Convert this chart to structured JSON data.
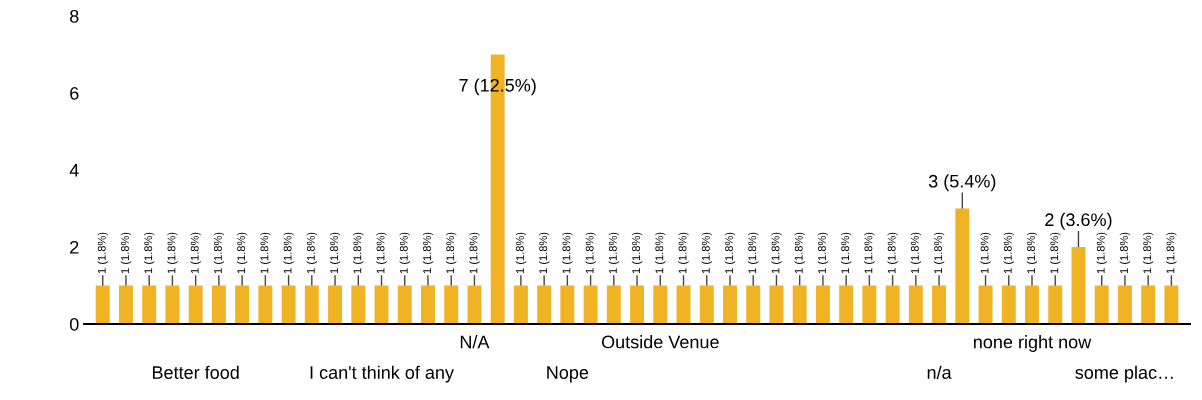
{
  "chart_data": {
    "type": "bar",
    "categories": [
      null,
      null,
      null,
      null,
      "Better food",
      null,
      null,
      null,
      null,
      null,
      null,
      null,
      "I can't think of any",
      null,
      null,
      null,
      "N/A",
      null,
      null,
      null,
      "Nope",
      null,
      null,
      null,
      "Outside Venue",
      null,
      null,
      null,
      null,
      null,
      null,
      null,
      null,
      null,
      null,
      null,
      "n/a",
      null,
      null,
      null,
      "none right now",
      null,
      null,
      null,
      "some plac…",
      null,
      null
    ],
    "values": [
      1,
      1,
      1,
      1,
      1,
      1,
      1,
      1,
      1,
      1,
      1,
      1,
      1,
      1,
      1,
      1,
      1,
      7,
      1,
      1,
      1,
      1,
      1,
      1,
      1,
      1,
      1,
      1,
      1,
      1,
      1,
      1,
      1,
      1,
      1,
      1,
      1,
      3,
      1,
      1,
      1,
      1,
      2,
      1,
      1,
      1,
      1
    ],
    "value_labels": [
      "1 (1.8%)",
      "1 (1.8%)",
      "1 (1.8%)",
      "1 (1.8%)",
      "1 (1.8%)",
      "1 (1.8%)",
      "1 (1.8%)",
      "1 (1.8%)",
      "1 (1.8%)",
      "1 (1.8%)",
      "1 (1.8%)",
      "1 (1.8%)",
      "1 (1.8%)",
      "1 (1.8%)",
      "1 (1.8%)",
      "1 (1.8%)",
      "1 (1.8%)",
      "7 (12.5%)",
      "1 (1.8%)",
      "1 (1.8%)",
      "1 (1.8%)",
      "1 (1.8%)",
      "1 (1.8%)",
      "1 (1.8%)",
      "1 (1.8%)",
      "1 (1.8%)",
      "1 (1.8%)",
      "1 (1.8%)",
      "1 (1.8%)",
      "1 (1.8%)",
      "1 (1.8%)",
      "1 (1.8%)",
      "1 (1.8%)",
      "1 (1.8%)",
      "1 (1.8%)",
      "1 (1.8%)",
      "1 (1.8%)",
      "3 (5.4%)",
      "1 (1.8%)",
      "1 (1.8%)",
      "1 (1.8%)",
      "1 (1.8%)",
      "2 (3.6%)",
      "1 (1.8%)",
      "1 (1.8%)",
      "1 (1.8%)",
      "1 (1.8%)"
    ],
    "color": "#f0b323",
    "ylim": [
      0,
      8
    ],
    "yticks": [
      0,
      2,
      4,
      6,
      8
    ],
    "grid": false
  }
}
